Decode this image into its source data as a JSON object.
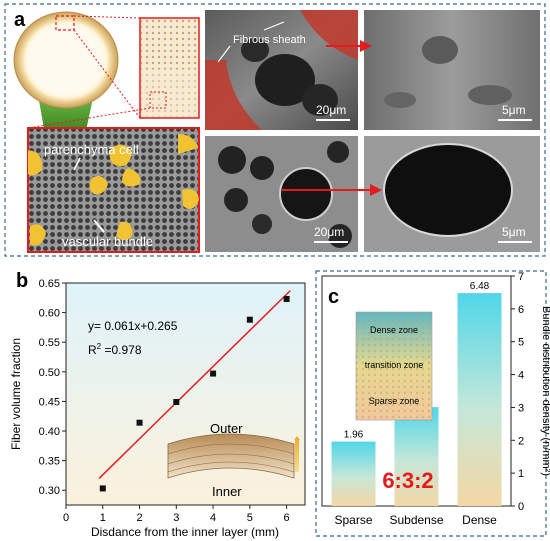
{
  "panel_a": {
    "letter": "a",
    "label_fibrous": "Fibrous sheath",
    "label_parenchyma": "parenchyma cell",
    "label_vascular": "vascular bundle",
    "scale_top_left": "20μm",
    "scale_top_right": "5μm",
    "scale_bottom_left": "20μm",
    "scale_bottom_right": "5μm"
  },
  "panel_b": {
    "letter": "b",
    "equation": "y= 0.061x+0.265",
    "r2_prefix": "R",
    "r2_sup": "2",
    "r2_value": " =0.978",
    "inset_outer": "Outer",
    "inset_inner": "Inner"
  },
  "panel_c": {
    "letter": "c",
    "ratio": "6:3:2",
    "inset_dense": "Dense zone",
    "inset_transition": "transition zone",
    "inset_sparse": "Sparse zone"
  },
  "chart_data": [
    {
      "type": "scatter",
      "xlabel": "Disdance from the inner layer (mm)",
      "ylabel": "Fiber volume fraction",
      "x": [
        1,
        2,
        3,
        4,
        5,
        6
      ],
      "y": [
        0.303,
        0.414,
        0.449,
        0.497,
        0.588,
        0.623
      ],
      "fit": {
        "slope": 0.061,
        "intercept": 0.265,
        "x_range": [
          0.9,
          6.1
        ]
      },
      "xlim": [
        0,
        6.5
      ],
      "ylim": [
        0.275,
        0.65
      ],
      "xticks": [
        "0",
        "1",
        "2",
        "3",
        "4",
        "5",
        "6"
      ],
      "yticks": [
        "0.30",
        "0.35",
        "0.40",
        "0.45",
        "0.50",
        "0.55",
        "0.60",
        "0.65"
      ],
      "ytick_values": [
        0.3,
        0.35,
        0.4,
        0.45,
        0.5,
        0.55,
        0.6,
        0.65
      ],
      "colors": {
        "points": "#111111",
        "fit": "#e41a1c"
      }
    },
    {
      "type": "bar",
      "categories": [
        "Sparse",
        "Subdense",
        "Dense"
      ],
      "values": [
        1.96,
        3.01,
        6.48
      ],
      "value_labels": [
        "1.96",
        "3.01",
        "6.48"
      ],
      "ylabel": "Bundle distribution density (n/mm²)",
      "ylim": [
        0,
        7
      ],
      "yticks": [
        "0",
        "1",
        "2",
        "3",
        "4",
        "5",
        "6",
        "7"
      ],
      "axis_side": "right",
      "colors": {
        "bar_top": "#4fd6e8",
        "bar_bottom": "#f3d7a4",
        "ratio": "#e41a1c"
      }
    }
  ]
}
